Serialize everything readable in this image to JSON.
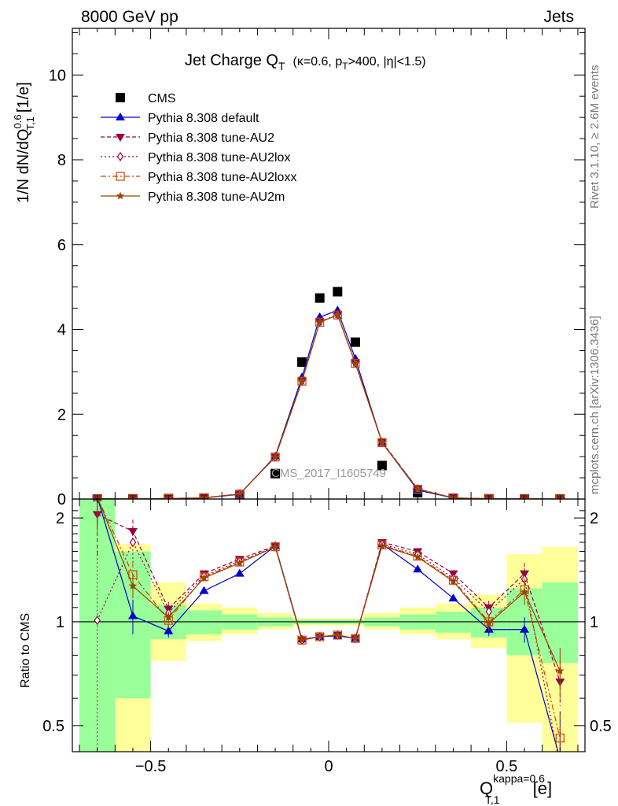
{
  "header": {
    "left": "8000 GeV pp",
    "right": "Jets"
  },
  "side_text": {
    "rivet": "Rivet 3.1.10, ≥ 2.6M events",
    "site": "mcplots.cern.ch [arXiv:1306.3436]"
  },
  "watermark": "CMS_2017_I1605749",
  "chart_data": [
    {
      "type": "scatter",
      "panel": "main",
      "title": "Jet Charge Q",
      "title_sub": "T",
      "title_cuts": "(κ=0.6, p",
      "title_cuts_sub": "T",
      "title_cuts_tail": ">400, |η|<1.5)",
      "ylabel": "1/N dN/dQ",
      "ylabel_sup": "0.6",
      "ylabel_sub": "T,1",
      "ylabel_unit": "[1/e]",
      "xlim": [
        -0.72,
        0.72
      ],
      "ylim": [
        0,
        11.1
      ],
      "yticks": [
        0,
        2,
        4,
        6,
        8,
        10
      ],
      "x": [
        -0.65,
        -0.55,
        -0.45,
        -0.35,
        -0.25,
        -0.15,
        -0.075,
        -0.025,
        0.025,
        0.075,
        0.15,
        0.25,
        0.35,
        0.45,
        0.55,
        0.65
      ],
      "series": [
        {
          "name": "CMS",
          "color": "#000000",
          "marker": "square",
          "values": [
            0.001,
            0.003,
            0.01,
            0.02,
            0.08,
            0.6,
            3.23,
            4.74,
            4.89,
            3.7,
            0.79,
            0.15,
            0.02,
            0.005,
            0.002,
            0.0005
          ]
        },
        {
          "name": "Pythia 8.308 default",
          "color": "#0000cc",
          "marker": "triangle-up",
          "dash": "",
          "values": [
            0.002,
            0.003,
            0.009,
            0.025,
            0.11,
            1.01,
            2.87,
            4.29,
            4.45,
            3.31,
            1.33,
            0.21,
            0.024,
            0.005,
            0.002,
            0.0002
          ]
        },
        {
          "name": "Pythia 8.308 tune-AU2",
          "color": "#990044",
          "marker": "triangle-down",
          "dash": "5,3",
          "values": [
            0.002,
            0.005,
            0.011,
            0.03,
            0.12,
            0.99,
            2.78,
            4.17,
            4.34,
            3.2,
            1.35,
            0.24,
            0.028,
            0.006,
            0.003,
            0.0003
          ]
        },
        {
          "name": "Pythia 8.308 tune-AU2lox",
          "color": "#990044",
          "marker": "diamond",
          "dash": "2,3",
          "values": [
            0.001,
            0.005,
            0.011,
            0.03,
            0.12,
            0.99,
            2.79,
            4.18,
            4.35,
            3.21,
            1.34,
            0.24,
            0.028,
            0.006,
            0.003,
            0.0002
          ]
        },
        {
          "name": "Pythia 8.308 tune-AU2loxx",
          "color": "#cc4400",
          "marker": "square-open",
          "dash": "7,3,2,3",
          "values": [
            0.002,
            0.004,
            0.01,
            0.028,
            0.12,
            0.99,
            2.78,
            4.17,
            4.34,
            3.2,
            1.33,
            0.23,
            0.027,
            0.005,
            0.0025,
            0.0002
          ]
        },
        {
          "name": "Pythia 8.308 tune-AU2m",
          "color": "#994400",
          "marker": "star",
          "dash": "",
          "values": [
            0.002,
            0.004,
            0.01,
            0.028,
            0.12,
            0.99,
            2.78,
            4.17,
            4.34,
            3.2,
            1.33,
            0.23,
            0.027,
            0.005,
            0.0025,
            0.0002
          ]
        }
      ]
    },
    {
      "type": "line",
      "panel": "ratio",
      "ylabel": "Ratio to CMS",
      "xlabel": "Q",
      "xlabel_sup": "kappa=0.6",
      "xlabel_sub": "T,1",
      "xlabel_unit": "[e]",
      "xlim": [
        -0.72,
        0.72
      ],
      "ylim": [
        0.42,
        2.27
      ],
      "log_y": true,
      "yticks": [
        0.5,
        1,
        2
      ],
      "xticks": [
        -0.5,
        0,
        0.5
      ],
      "xtick_labels": [
        "−0.5",
        "0",
        "0.5"
      ],
      "bins": [
        [
          -0.7,
          -0.6
        ],
        [
          -0.6,
          -0.5
        ],
        [
          -0.5,
          -0.4
        ],
        [
          -0.4,
          -0.3
        ],
        [
          -0.3,
          -0.2
        ],
        [
          -0.2,
          -0.1
        ],
        [
          -0.1,
          -0.05
        ],
        [
          -0.05,
          0
        ],
        [
          0,
          0.05
        ],
        [
          0.05,
          0.1
        ],
        [
          0.1,
          0.2
        ],
        [
          0.2,
          0.3
        ],
        [
          0.3,
          0.4
        ],
        [
          0.4,
          0.5
        ],
        [
          0.5,
          0.6
        ],
        [
          0.6,
          0.7
        ]
      ],
      "band_green": [
        [
          0.3,
          3.0
        ],
        [
          0.6,
          1.6
        ],
        [
          0.89,
          1.12
        ],
        [
          0.92,
          1.08
        ],
        [
          0.95,
          1.05
        ],
        [
          0.97,
          1.03
        ],
        [
          0.985,
          1.015
        ],
        [
          0.985,
          1.015
        ],
        [
          0.985,
          1.015
        ],
        [
          0.985,
          1.015
        ],
        [
          0.97,
          1.03
        ],
        [
          0.95,
          1.05
        ],
        [
          0.93,
          1.07
        ],
        [
          0.9,
          1.1
        ],
        [
          0.8,
          1.25
        ],
        [
          0.76,
          1.3
        ]
      ],
      "band_yellow": [
        [
          0.3,
          3.0
        ],
        [
          0.3,
          1.68
        ],
        [
          0.77,
          1.3
        ],
        [
          0.88,
          1.13
        ],
        [
          0.92,
          1.1
        ],
        [
          0.95,
          1.06
        ],
        [
          0.975,
          1.025
        ],
        [
          0.975,
          1.025
        ],
        [
          0.975,
          1.025
        ],
        [
          0.975,
          1.025
        ],
        [
          0.95,
          1.06
        ],
        [
          0.92,
          1.1
        ],
        [
          0.89,
          1.13
        ],
        [
          0.84,
          1.2
        ],
        [
          0.51,
          1.57
        ],
        [
          0.4,
          1.65
        ]
      ],
      "series": [
        {
          "name": "Pythia 8.308 default",
          "color": "#0000cc",
          "values": [
            2.3,
            1.04,
            0.94,
            1.23,
            1.38,
            1.66,
            0.89,
            0.905,
            0.91,
            0.895,
            1.68,
            1.42,
            1.17,
            0.95,
            0.95,
            0.4
          ],
          "err": [
            0.4,
            0.12,
            0.04,
            0.02,
            0.02,
            0.02,
            0.01,
            0.01,
            0.01,
            0.01,
            0.02,
            0.02,
            0.02,
            0.04,
            0.08,
            0.15
          ]
        },
        {
          "name": "Pythia 8.308 tune-AU2",
          "color": "#990044",
          "values": [
            2.05,
            1.83,
            1.09,
            1.38,
            1.52,
            1.66,
            0.885,
            0.905,
            0.915,
            0.895,
            1.7,
            1.6,
            1.38,
            1.1,
            1.38,
            0.67
          ],
          "err": [
            0.5,
            0.15,
            0.05,
            0.02,
            0.02,
            0.02,
            0.01,
            0.01,
            0.01,
            0.01,
            0.02,
            0.02,
            0.03,
            0.05,
            0.1,
            0.1
          ]
        },
        {
          "name": "Pythia 8.308 tune-AU2lox",
          "color": "#990044",
          "values": [
            1.01,
            1.7,
            1.06,
            1.36,
            1.5,
            1.65,
            0.885,
            0.905,
            0.915,
            0.895,
            1.68,
            1.57,
            1.34,
            1.07,
            1.33,
            0.38
          ],
          "err": [
            0.6,
            0.25,
            0.05,
            0.02,
            0.02,
            0.02,
            0.01,
            0.01,
            0.01,
            0.01,
            0.02,
            0.02,
            0.03,
            0.05,
            0.1,
            0.1
          ]
        },
        {
          "name": "Pythia 8.308 tune-AU2loxx",
          "color": "#cc4400",
          "values": [
            2.3,
            1.37,
            1.01,
            1.35,
            1.49,
            1.65,
            0.885,
            0.905,
            0.915,
            0.895,
            1.67,
            1.55,
            1.32,
            1.0,
            1.24,
            0.46
          ],
          "err": [
            0.5,
            0.12,
            0.05,
            0.02,
            0.02,
            0.02,
            0.01,
            0.01,
            0.01,
            0.01,
            0.02,
            0.02,
            0.03,
            0.05,
            0.1,
            0.08
          ]
        },
        {
          "name": "Pythia 8.308 tune-AU2m",
          "color": "#994400",
          "values": [
            2.3,
            1.27,
            1.03,
            1.34,
            1.48,
            1.65,
            0.885,
            0.905,
            0.915,
            0.895,
            1.66,
            1.54,
            1.31,
            0.99,
            1.22,
            0.72
          ],
          "err": [
            0.4,
            0.1,
            0.04,
            0.02,
            0.02,
            0.02,
            0.01,
            0.01,
            0.01,
            0.01,
            0.02,
            0.02,
            0.03,
            0.05,
            0.1,
            0.12
          ]
        }
      ]
    }
  ]
}
